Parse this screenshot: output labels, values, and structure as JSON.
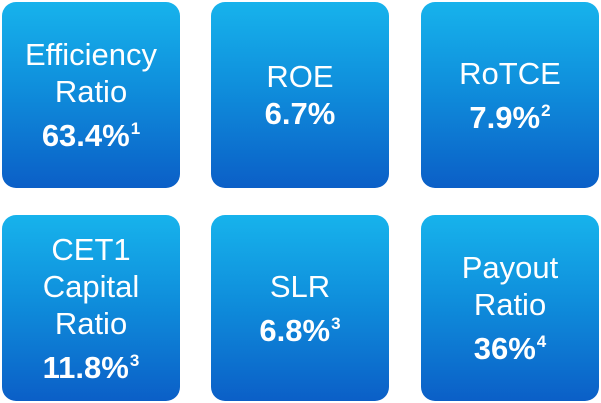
{
  "tiles": [
    {
      "label": [
        "Efficiency",
        "Ratio"
      ],
      "value": "63.4%",
      "note": "1"
    },
    {
      "label": [
        "ROE"
      ],
      "value": "6.7%"
    },
    {
      "label": [
        "RoTCE"
      ],
      "value": "7.9%",
      "note": "2"
    },
    {
      "label": [
        "CET1",
        "Capital",
        "Ratio"
      ],
      "value": "11.8%",
      "note": "3"
    },
    {
      "label": [
        "SLR"
      ],
      "value": "6.8%",
      "note": "3"
    },
    {
      "label": [
        "Payout",
        "Ratio"
      ],
      "value": "36%",
      "note": "4"
    }
  ]
}
